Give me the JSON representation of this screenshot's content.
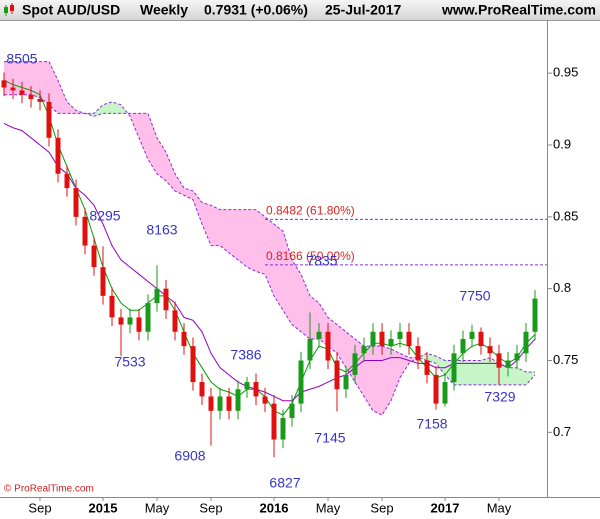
{
  "chart_data": {
    "type": "candlestick",
    "header": {
      "instrument": "Spot AUD/USD",
      "period": "Weekly",
      "price": "0.7931 (+0.06%)",
      "date": "25-Jul-2017",
      "site": "www.ProRealTime.com"
    },
    "footer": "© ProRealTime.com",
    "categories": [
      null,
      null,
      null,
      null,
      "Sep",
      null,
      null,
      null,
      null,
      null,
      null,
      "2015",
      null,
      null,
      null,
      null,
      null,
      "May",
      null,
      null,
      null,
      null,
      null,
      "Sep",
      null,
      null,
      null,
      null,
      null,
      null,
      "2016",
      null,
      null,
      null,
      null,
      null,
      "May",
      null,
      null,
      null,
      null,
      null,
      "Sep",
      null,
      null,
      null,
      null,
      null,
      null,
      "2017",
      null,
      null,
      null,
      null,
      null,
      "May",
      null,
      null,
      null,
      null
    ],
    "open": [
      0.945,
      0.94,
      0.938,
      0.935,
      0.932,
      0.93,
      0.905,
      0.88,
      0.87,
      0.85,
      0.83,
      0.815,
      0.795,
      0.78,
      0.775,
      0.78,
      0.77,
      0.79,
      0.8,
      0.785,
      0.77,
      0.76,
      0.735,
      0.725,
      0.715,
      0.725,
      0.715,
      0.73,
      0.735,
      0.725,
      0.72,
      0.695,
      0.71,
      0.72,
      0.75,
      0.765,
      0.77,
      0.75,
      0.73,
      0.74,
      0.755,
      0.76,
      0.77,
      0.76,
      0.765,
      0.77,
      0.76,
      0.75,
      0.74,
      0.72,
      0.735,
      0.755,
      0.765,
      0.77,
      0.76,
      0.755,
      0.745,
      0.75,
      0.755,
      0.77
    ],
    "high": [
      0.9505,
      0.946,
      0.944,
      0.941,
      0.938,
      0.936,
      0.911,
      0.886,
      0.876,
      0.856,
      0.836,
      0.8295,
      0.801,
      0.786,
      0.786,
      0.786,
      0.796,
      0.8163,
      0.806,
      0.791,
      0.776,
      0.766,
      0.741,
      0.731,
      0.731,
      0.731,
      0.736,
      0.7386,
      0.741,
      0.731,
      0.726,
      0.716,
      0.726,
      0.756,
      0.7835,
      0.776,
      0.776,
      0.756,
      0.746,
      0.761,
      0.766,
      0.776,
      0.776,
      0.771,
      0.776,
      0.776,
      0.766,
      0.756,
      0.746,
      0.741,
      0.761,
      0.771,
      0.775,
      0.773,
      0.766,
      0.761,
      0.756,
      0.761,
      0.776,
      0.799
    ],
    "low": [
      0.934,
      0.932,
      0.929,
      0.926,
      0.924,
      0.899,
      0.874,
      0.864,
      0.844,
      0.824,
      0.809,
      0.789,
      0.774,
      0.7533,
      0.769,
      0.764,
      0.764,
      0.784,
      0.779,
      0.764,
      0.754,
      0.729,
      0.719,
      0.6908,
      0.709,
      0.709,
      0.709,
      0.724,
      0.719,
      0.714,
      0.6827,
      0.689,
      0.704,
      0.714,
      0.744,
      0.759,
      0.744,
      0.7145,
      0.724,
      0.734,
      0.749,
      0.754,
      0.754,
      0.754,
      0.759,
      0.754,
      0.744,
      0.734,
      0.7158,
      0.718,
      0.729,
      0.749,
      0.759,
      0.754,
      0.749,
      0.7329,
      0.739,
      0.744,
      0.749,
      0.764
    ],
    "close": [
      0.94,
      0.938,
      0.935,
      0.932,
      0.93,
      0.905,
      0.88,
      0.87,
      0.85,
      0.83,
      0.815,
      0.795,
      0.78,
      0.775,
      0.78,
      0.77,
      0.79,
      0.8,
      0.785,
      0.77,
      0.76,
      0.735,
      0.725,
      0.715,
      0.725,
      0.715,
      0.73,
      0.735,
      0.725,
      0.72,
      0.695,
      0.71,
      0.72,
      0.75,
      0.765,
      0.77,
      0.75,
      0.73,
      0.74,
      0.755,
      0.76,
      0.77,
      0.76,
      0.765,
      0.77,
      0.76,
      0.75,
      0.74,
      0.72,
      0.735,
      0.755,
      0.765,
      0.77,
      0.76,
      0.755,
      0.745,
      0.75,
      0.755,
      0.77,
      0.7931
    ],
    "up_color": "#1a9a1a",
    "down_color": "#e01010",
    "lines": [
      {
        "color": "#00a000",
        "values": [
          0.945,
          0.942,
          0.94,
          0.938,
          0.935,
          0.92,
          0.9,
          0.885,
          0.87,
          0.855,
          0.835,
          0.815,
          0.8,
          0.79,
          0.785,
          0.785,
          0.79,
          0.795,
          0.795,
          0.785,
          0.77,
          0.755,
          0.745,
          0.735,
          0.73,
          0.728,
          0.725,
          0.73,
          0.73,
          0.725,
          0.715,
          0.712,
          0.72,
          0.735,
          0.75,
          0.76,
          0.758,
          0.745,
          0.742,
          0.748,
          0.755,
          0.762,
          0.762,
          0.76,
          0.762,
          0.76,
          0.752,
          0.745,
          0.738,
          0.74,
          0.748,
          0.755,
          0.76,
          0.762,
          0.758,
          0.752,
          0.748,
          0.752,
          0.762,
          0.768
        ]
      },
      {
        "color": "#9000c8",
        "values": [
          0.915,
          0.912,
          0.91,
          0.905,
          0.9,
          0.895,
          0.885,
          0.88,
          0.87,
          0.865,
          0.858,
          0.845,
          0.83,
          0.82,
          0.815,
          0.81,
          0.805,
          0.8,
          0.795,
          0.79,
          0.78,
          0.778,
          0.77,
          0.755,
          0.745,
          0.74,
          0.735,
          0.732,
          0.73,
          0.728,
          0.725,
          0.722,
          0.722,
          0.728,
          0.73,
          0.732,
          0.735,
          0.738,
          0.74,
          0.745,
          0.75,
          0.75,
          0.75,
          0.752,
          0.752,
          0.75,
          0.748,
          0.748,
          0.745,
          0.745,
          0.748,
          0.748,
          0.748,
          0.748,
          0.748,
          0.748,
          0.745,
          0.75,
          0.758,
          0.765
        ]
      }
    ],
    "cloud": {
      "line_color": "#8a2be2",
      "bull_color": "#c8f5c8",
      "bear_color": "#ffbfea",
      "span_a": [
        0.935,
        0.935,
        0.935,
        0.935,
        0.933,
        0.928,
        0.922,
        0.922,
        0.922,
        0.922,
        0.922,
        0.928,
        0.93,
        0.928,
        0.92,
        0.905,
        0.89,
        0.88,
        0.875,
        0.868,
        0.865,
        0.862,
        0.845,
        0.83,
        0.83,
        0.825,
        0.82,
        0.815,
        0.812,
        0.81,
        0.795,
        0.785,
        0.775,
        0.77,
        0.765,
        0.765,
        0.76,
        0.755,
        0.745,
        0.735,
        0.725,
        0.715,
        0.712,
        0.722,
        0.738,
        0.748,
        0.752,
        0.755,
        0.753,
        0.75,
        0.75,
        0.75,
        0.75,
        0.75,
        0.752,
        0.748,
        0.745,
        0.745,
        0.742,
        0.742
      ],
      "span_b": [
        0.958,
        0.958,
        0.958,
        0.958,
        0.958,
        0.958,
        0.945,
        0.93,
        0.924,
        0.922,
        0.92,
        0.922,
        0.922,
        0.922,
        0.922,
        0.922,
        0.922,
        0.905,
        0.895,
        0.88,
        0.87,
        0.868,
        0.86,
        0.858,
        0.855,
        0.855,
        0.855,
        0.855,
        0.855,
        0.85,
        0.845,
        0.84,
        0.82,
        0.81,
        0.795,
        0.79,
        0.78,
        0.775,
        0.77,
        0.765,
        0.76,
        0.76,
        0.76,
        0.758,
        0.755,
        0.752,
        0.752,
        0.75,
        0.748,
        0.74,
        0.733,
        0.733,
        0.733,
        0.733,
        0.733,
        0.733,
        0.733,
        0.733,
        0.733,
        0.74
      ]
    },
    "levels": [
      {
        "value": 0.8482,
        "label": "0.8482 (61.80%)",
        "color": "#8a2be2"
      },
      {
        "value": 0.8166,
        "label": "0.8166 (50.00%)",
        "color": "#8a2be2"
      }
    ],
    "annotations": [
      "8505",
      "8295",
      "8163",
      "7835",
      "7533",
      "7386",
      "6908",
      "6827",
      "7145",
      "7158",
      "7329",
      "7750"
    ],
    "ylim": [
      0.655,
      0.987
    ],
    "yticks": [
      0.7,
      0.75,
      0.8,
      0.85,
      0.9,
      0.95
    ],
    "grid": false
  }
}
